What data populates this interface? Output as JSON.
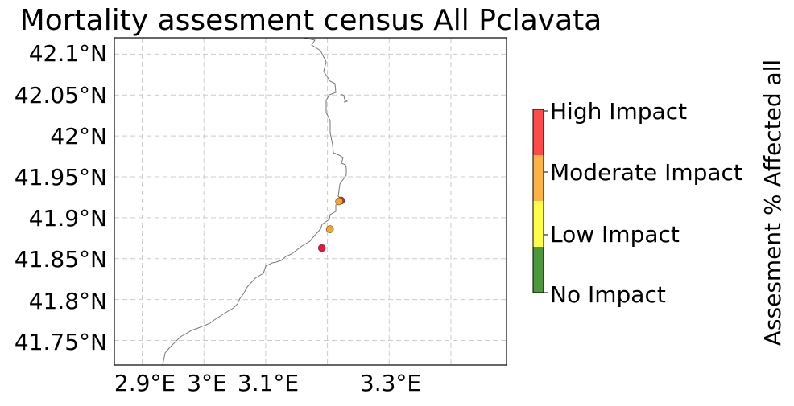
{
  "title": "Mortality assesment census All Pclavata",
  "map": {
    "x_ticks": [
      "2.9°E",
      "3°E",
      "3.1°E",
      "3.3°E"
    ],
    "y_ticks": [
      "42.1°N",
      "42.05°N",
      "42°N",
      "41.95°N",
      "41.9°N",
      "41.85°N",
      "41.8°N",
      "41.75°N"
    ],
    "grid": "dashed"
  },
  "colorbar": {
    "label": "Assesment % Affected all",
    "levels": [
      {
        "label": "No Impact",
        "color": "#4a9a3c"
      },
      {
        "label": "Low Impact",
        "color": "#ffff4a"
      },
      {
        "label": "Moderate Impact",
        "color": "#ffb347"
      },
      {
        "label": "High Impact",
        "color": "#ff4a4a"
      }
    ]
  },
  "chart_data": {
    "type": "scatter",
    "title": "Mortality assesment census All Pclavata",
    "xlabel": "",
    "ylabel": "",
    "xlim": [
      2.855,
      3.49
    ],
    "ylim": [
      41.72,
      42.12
    ],
    "points": [
      {
        "lon": 3.222,
        "lat": 41.921,
        "category": "High Impact",
        "color": "#e8173f"
      },
      {
        "lon": 3.219,
        "lat": 41.92,
        "category": "Moderate Impact",
        "color": "#f5a623"
      },
      {
        "lon": 3.204,
        "lat": 41.886,
        "category": "Moderate Impact",
        "color": "#f5a623"
      },
      {
        "lon": 3.191,
        "lat": 41.863,
        "category": "High Impact",
        "color": "#e8173f"
      }
    ]
  }
}
